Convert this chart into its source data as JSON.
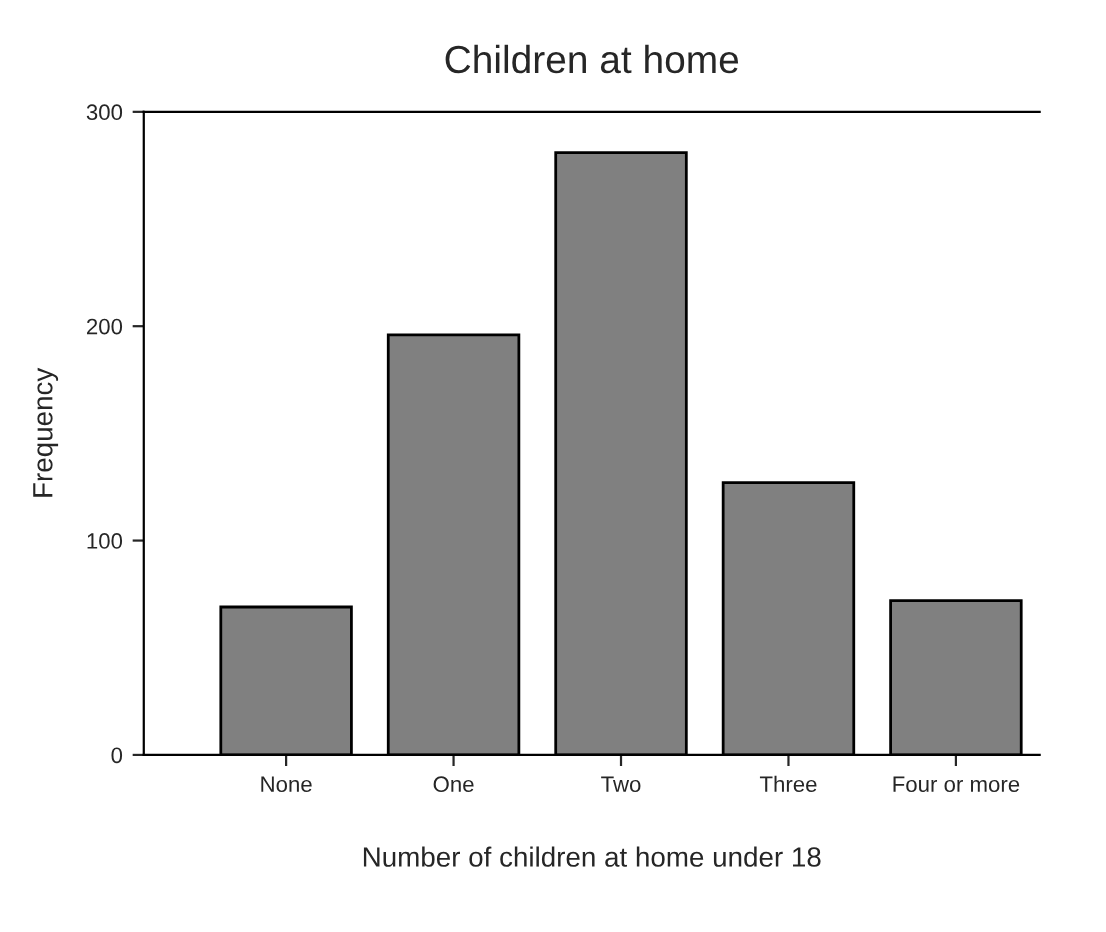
{
  "chart_data": {
    "type": "bar",
    "title": "Children at home",
    "xlabel": "Number of children at home under 18",
    "ylabel": "Frequency",
    "categories": [
      "None",
      "One",
      "Two",
      "Three",
      "Four or more"
    ],
    "values": [
      69,
      196,
      281,
      127,
      72
    ],
    "color": "#808080",
    "ylim": [
      0,
      300
    ],
    "yticks": [
      0,
      100,
      200,
      300
    ],
    "grid": false
  }
}
